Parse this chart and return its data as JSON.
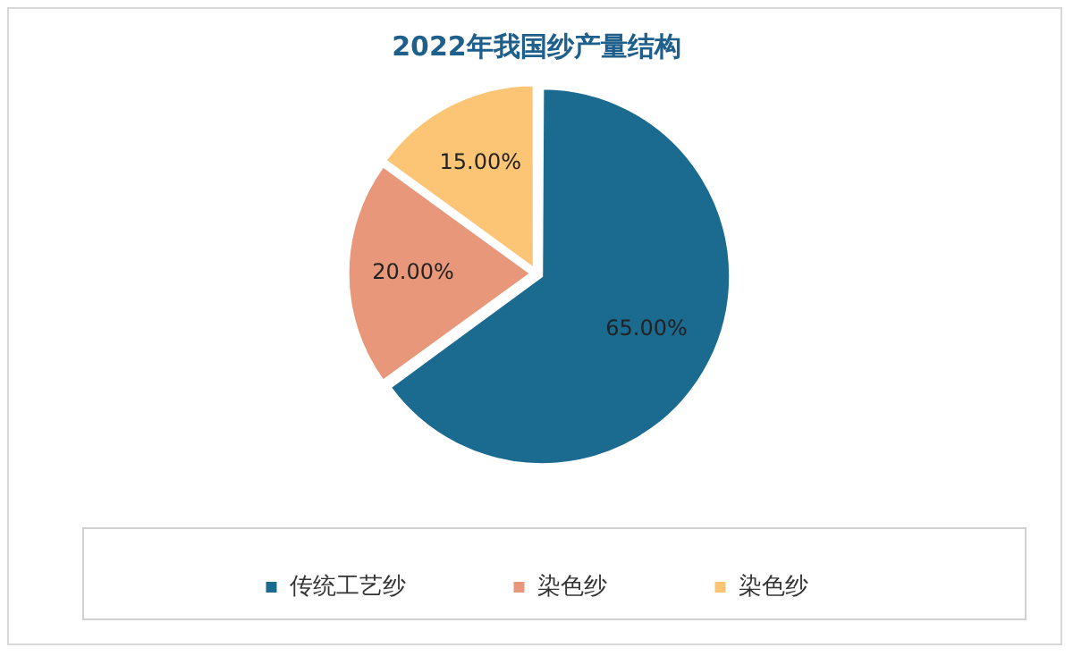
{
  "chart_data": {
    "type": "pie",
    "title": "2022年我国纱产量结构",
    "categories": [
      "传统工艺纱",
      "染色纱",
      "染色纱"
    ],
    "values": [
      65,
      20,
      15
    ],
    "colors": [
      "#1b6a90",
      "#e8977a",
      "#fcc575"
    ],
    "value_labels": [
      "65.00%",
      "20.00%",
      "15.00%"
    ],
    "legend": "bottom"
  }
}
